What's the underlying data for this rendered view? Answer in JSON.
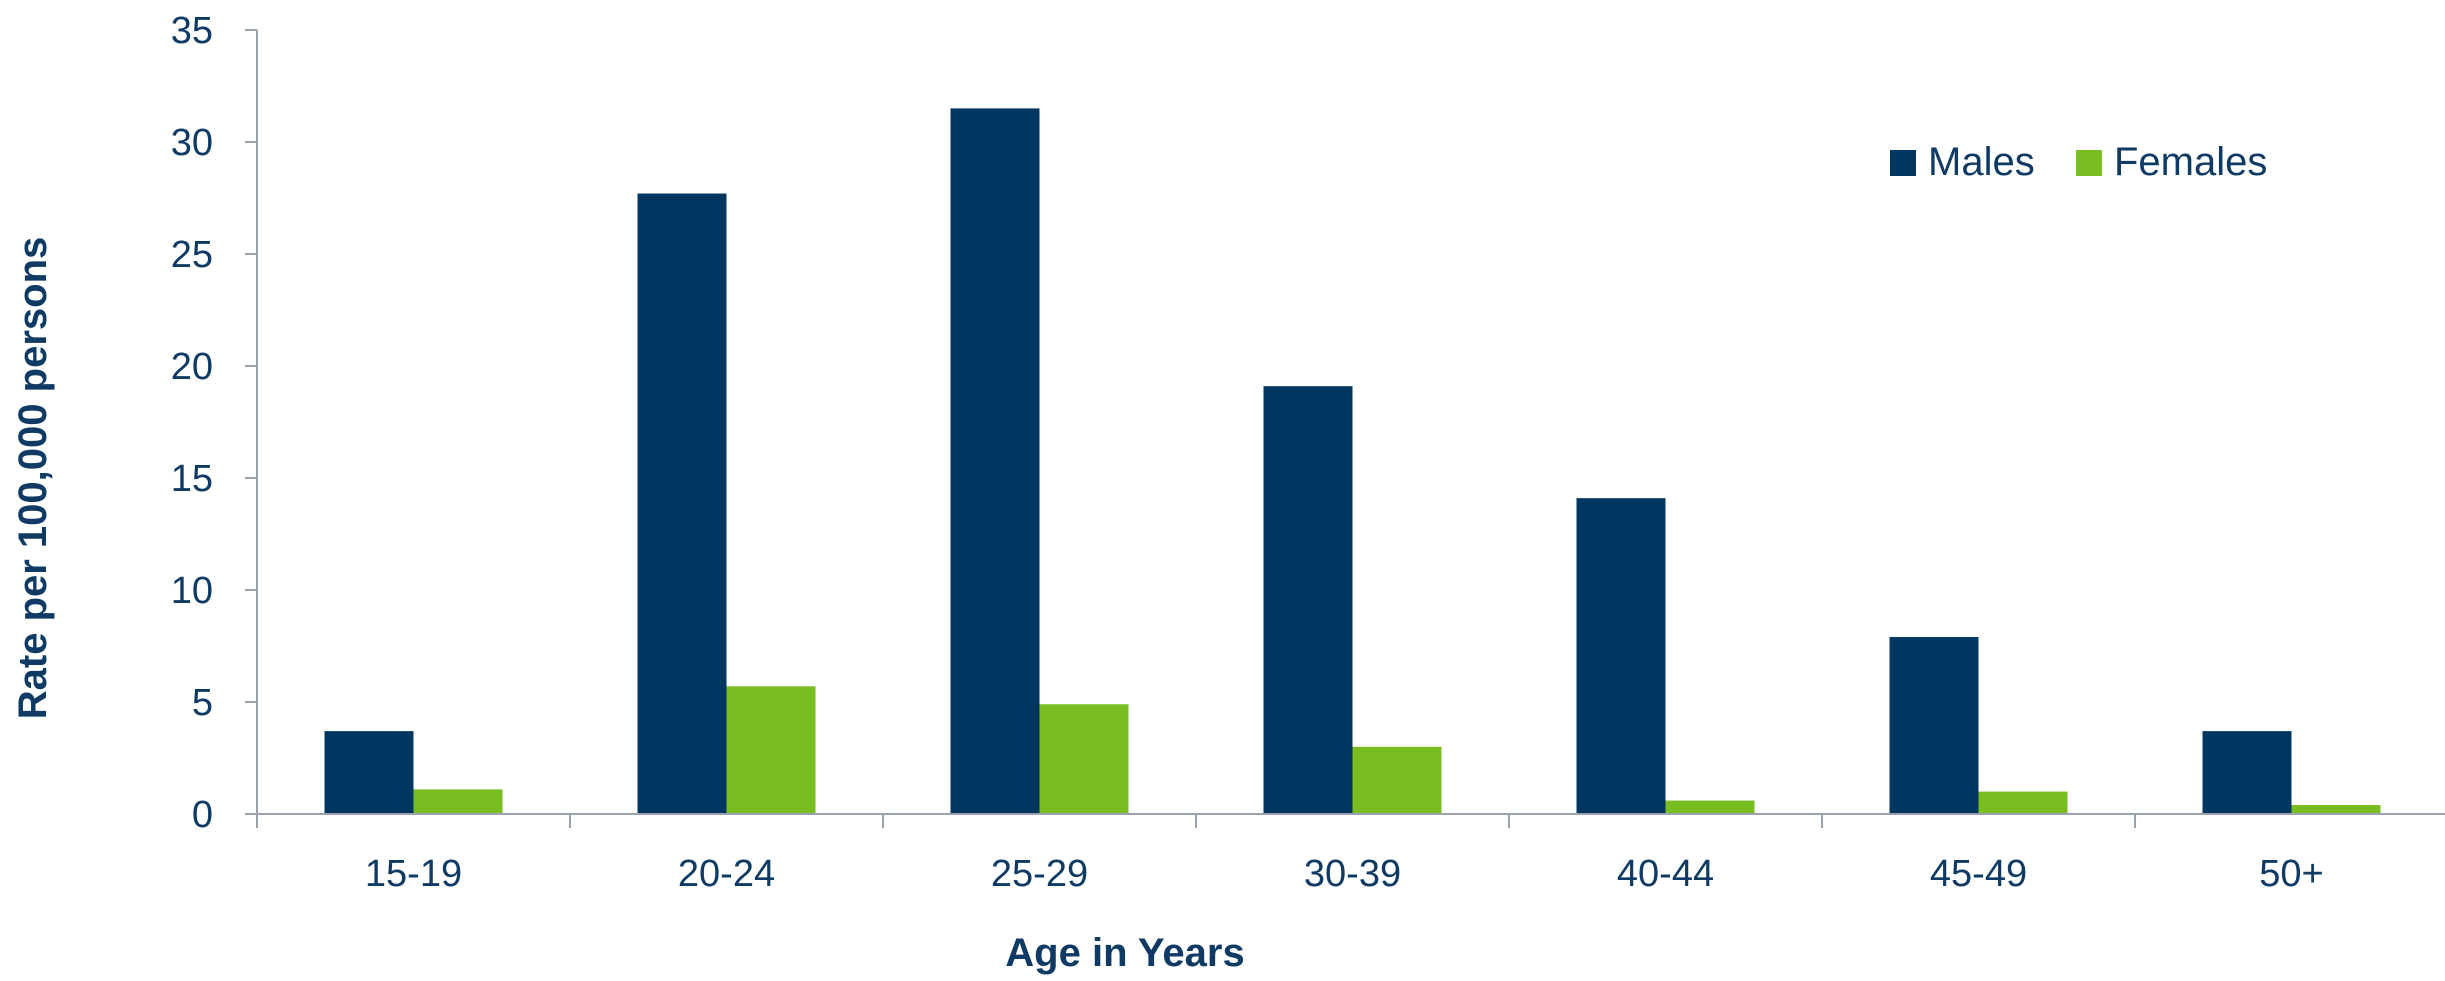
{
  "chart_data": {
    "type": "bar",
    "title": "",
    "xlabel": "Age in Years",
    "ylabel": "Rate per 100,000 persons",
    "categories": [
      "15-19",
      "20-24",
      "25-29",
      "30-39",
      "40-44",
      "45-49",
      "50+"
    ],
    "series": [
      {
        "name": "Males",
        "color": "#003660",
        "values": [
          3.7,
          27.7,
          31.5,
          19.1,
          14.1,
          7.9,
          3.7
        ]
      },
      {
        "name": "Females",
        "color": "#78be20",
        "values": [
          1.1,
          5.7,
          4.9,
          3.0,
          0.6,
          1.0,
          0.4
        ]
      }
    ],
    "ylim": [
      0,
      35
    ],
    "yticks": [
      0,
      5,
      10,
      15,
      20,
      25,
      30,
      35
    ],
    "grid": false,
    "legend_position": "top-right",
    "axis_color": "#9aa3ad",
    "text_color": "#0e3a63"
  }
}
